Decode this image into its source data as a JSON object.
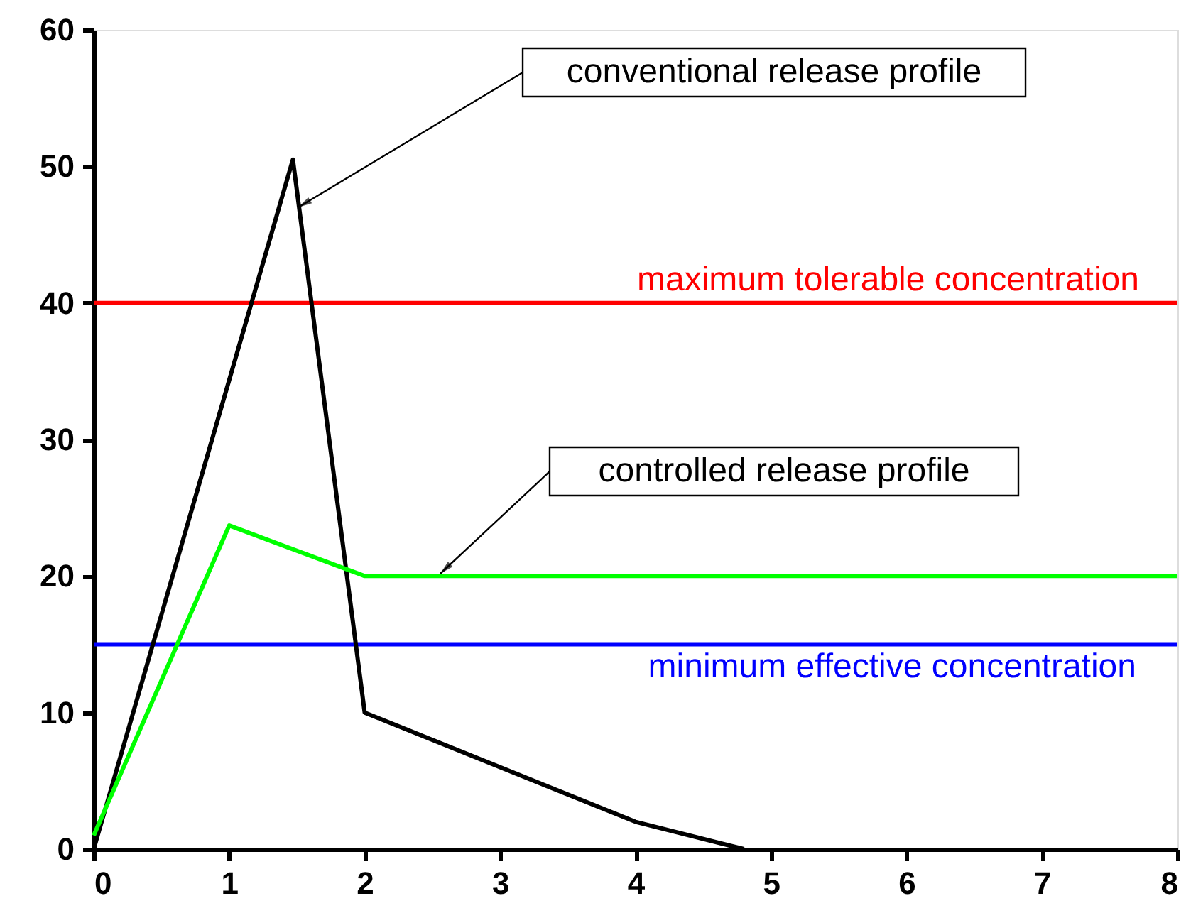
{
  "chart_data": {
    "type": "line",
    "series": [
      {
        "x": [
          0,
          1.47,
          2,
          4,
          4.8
        ],
        "values": [
          0,
          50.5,
          10,
          2,
          0
        ],
        "color": "#000000"
      },
      {
        "x": [
          0,
          1,
          2,
          8
        ],
        "values": [
          1,
          23.7,
          20,
          20
        ],
        "color": "#00ff00"
      }
    ],
    "xlim": [
      0,
      8
    ],
    "xticks": [
      0,
      1,
      2,
      3,
      4,
      5,
      6,
      7,
      8
    ],
    "ylim": [
      0,
      60
    ],
    "yticks": [
      0,
      10,
      20,
      30,
      40,
      50,
      60
    ],
    "grid": false,
    "marker": "none",
    "line_style": "solid",
    "ref_lines": [
      {
        "axis": "y",
        "value": 40,
        "label": "maximum tolerable concentration",
        "color": "#ff0000"
      },
      {
        "axis": "y",
        "value": 15,
        "label": "minimum effective concentration",
        "color": "#0000ff"
      }
    ],
    "annotations": [
      {
        "text": "conventional release profile",
        "x": 1.51,
        "y": 47
      },
      "controlled release profile"
    ]
  }
}
